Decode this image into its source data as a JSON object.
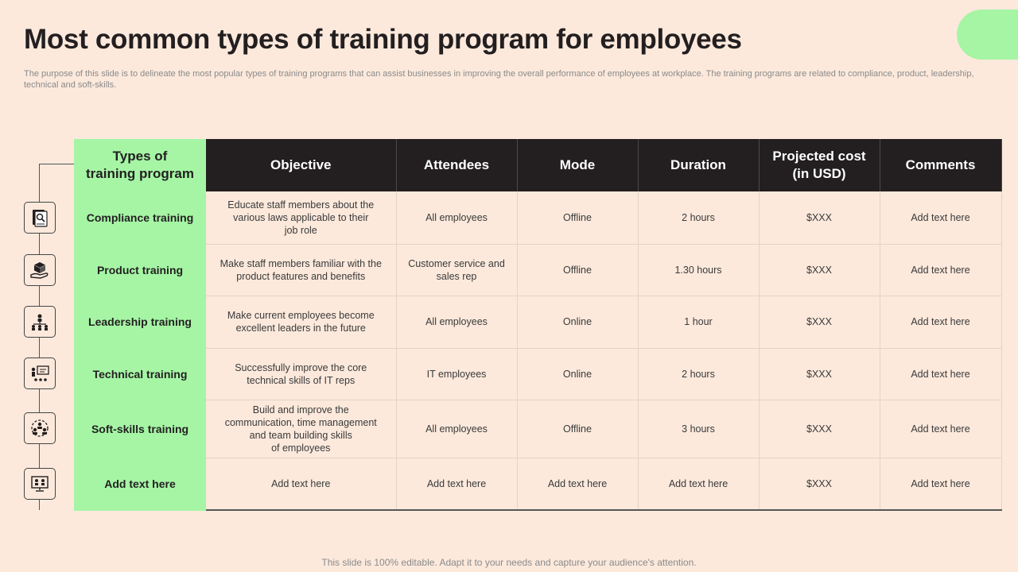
{
  "slide": {
    "title": "Most common types of training program for employees",
    "subtitle": "The purpose of this slide is to delineate the most popular types of training programs that can assist businesses in improving the overall performance of employees at workplace. The training programs are related to compliance, product, leadership, technical and soft-skills.",
    "footer": "This slide is 100% editable. Adapt it to your needs and capture your audience's attention."
  },
  "colors": {
    "background": "#fce9dc",
    "accent": "#a5f5a5",
    "header": "#231f20"
  },
  "table": {
    "headers": {
      "type": "Types of\ntraining program",
      "objective": "Objective",
      "attendees": "Attendees",
      "mode": "Mode",
      "duration": "Duration",
      "cost": "Projected cost\n(in USD)",
      "comments": "Comments"
    },
    "rows": [
      {
        "icon": "compliance-document-icon",
        "type": "Compliance training",
        "objective": "Educate staff members about the\nvarious laws applicable to their\njob role",
        "attendees": "All employees",
        "mode": "Offline",
        "duration": "2 hours",
        "cost": "$XXX",
        "comments": "Add text here"
      },
      {
        "icon": "product-box-hand-icon",
        "type": "Product training",
        "objective": "Make staff members familiar with the\nproduct features and benefits",
        "attendees": "Customer service and\nsales rep",
        "mode": "Offline",
        "duration": "1.30 hours",
        "cost": "$XXX",
        "comments": "Add text here"
      },
      {
        "icon": "leadership-hierarchy-icon",
        "type": "Leadership training",
        "objective": "Make current employees become\nexcellent leaders in the future",
        "attendees": "All employees",
        "mode": "Online",
        "duration": "1 hour",
        "cost": "$XXX",
        "comments": "Add text here"
      },
      {
        "icon": "technical-presentation-icon",
        "type": "Technical training",
        "objective": "Successfully improve  the core\ntechnical skills of IT  reps",
        "attendees": "IT employees",
        "mode": "Online",
        "duration": "2 hours",
        "cost": "$XXX",
        "comments": "Add text here"
      },
      {
        "icon": "soft-skills-team-icon",
        "type": "Soft-skills training",
        "objective": "Build and improve  the\ncommunication, time management\nand team building skills\nof employees",
        "attendees": "All employees",
        "mode": "Offline",
        "duration": "3 hours",
        "cost": "$XXX",
        "comments": "Add text here"
      },
      {
        "icon": "online-meeting-screen-icon",
        "type": "Add text here",
        "objective": "Add text here",
        "attendees": "Add text here",
        "mode": "Add text here",
        "duration": "Add text here",
        "cost": "$XXX",
        "comments": "Add text here"
      }
    ]
  }
}
